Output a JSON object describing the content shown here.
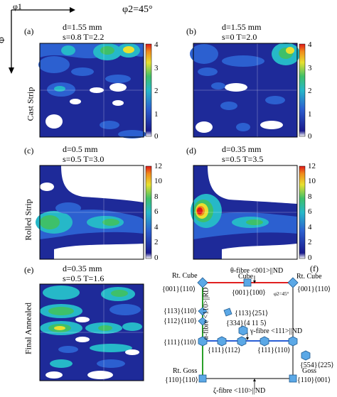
{
  "axes": {
    "x": "φ1",
    "y": "Φ",
    "section": "φ2=45°"
  },
  "rows": [
    "Cast Strip",
    "Rolled Strip",
    "Final Annealed"
  ],
  "panels": [
    {
      "id": "a",
      "label": "(a)",
      "line1": "d=1.55 mm",
      "line2": "s=0.8 T=2.2",
      "scale": [
        "4",
        "3",
        "2",
        "1",
        "0"
      ]
    },
    {
      "id": "b",
      "label": "(b)",
      "line1": "d=1.55 mm",
      "line2": "s=0 T=2.0",
      "scale": [
        "4",
        "3",
        "2",
        "1",
        "0"
      ]
    },
    {
      "id": "c",
      "label": "(c)",
      "line1": "d=0.5 mm",
      "line2": "s=0.5 T=3.0",
      "scale": [
        "12",
        "10",
        "8",
        "6",
        "4",
        "2",
        "0"
      ]
    },
    {
      "id": "d",
      "label": "(d)",
      "line1": "d=0.35 mm",
      "line2": "s=0.5 T=3.5",
      "scale": [
        "12",
        "10",
        "8",
        "6",
        "4",
        "2",
        "0"
      ]
    },
    {
      "id": "e",
      "label": "(e)",
      "line1": "d=0.35 mm",
      "line2": "s=0.5 T=1.6"
    }
  ],
  "key": {
    "label": "(f)",
    "theta_fibre": "θ-fibre <001>||ND",
    "alpha_fibre": "α-fibre <110>||RD",
    "gamma_fibre": "γ-fibre <111>||ND",
    "zeta_fibre": "ζ-fibre <110>||ND",
    "phi2": "φ2=45°",
    "rt_cube_left": "Rt. Cube",
    "rt_cube_left_idx": "{001}⟨110⟩",
    "cube": "Cube",
    "cube_idx": "{001}⟨100⟩",
    "rt_cube_right": "Rt. Cube",
    "rt_cube_right_idx": "{001}⟨110⟩",
    "o113_110": "{113}⟨110⟩",
    "o113_251": "{113}⟨251⟩",
    "o112_110": "{112}⟨110⟩",
    "o334": "{334}⟨4 11 5⟩",
    "o111_110a": "{111}⟨110⟩",
    "o111_112": "{111}⟨112⟩",
    "o111_110b": "{111}⟨110⟩",
    "o554": "{554}⟨225⟩",
    "rt_goss": "Rt. Goss",
    "rt_goss_idx": "{110}⟨110⟩",
    "goss": "Goss",
    "goss_idx": "{110}⟨001⟩"
  },
  "colors": {
    "theta": "#e02020",
    "alpha": "#2aa02a",
    "gamma": "#2a5fd6",
    "cube_fill": "#5ba8e6",
    "map_low": "#1a1a8c",
    "map_high": "#e02020"
  }
}
